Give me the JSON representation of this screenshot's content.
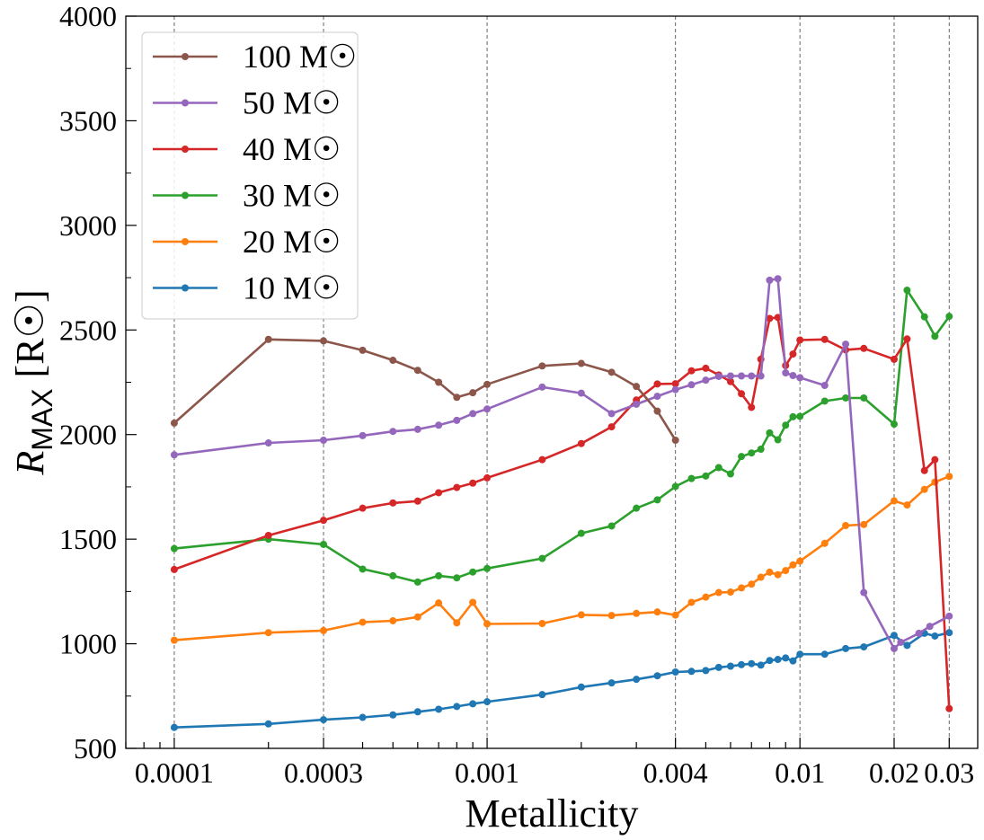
{
  "chart_data": {
    "type": "line",
    "xscale": "log",
    "xlabel": "Metallicity",
    "ylabel": "R_MAX [R☉]",
    "ylabel_parts": {
      "symbol": "R",
      "subscript": "MAX",
      "unit": "[R☉]"
    },
    "xlim": [
      7e-05,
      0.037
    ],
    "ylim": [
      500,
      4000
    ],
    "x_ticks": [
      {
        "value": 0.0001,
        "label": "0.0001"
      },
      {
        "value": 0.0003,
        "label": "0.0003"
      },
      {
        "value": 0.001,
        "label": "0.001"
      },
      {
        "value": 0.004,
        "label": "0.004"
      },
      {
        "value": 0.01,
        "label": "0.01"
      },
      {
        "value": 0.02,
        "label": "0.02"
      },
      {
        "value": 0.03,
        "label": "0.03"
      }
    ],
    "y_ticks": [
      500,
      1000,
      1500,
      2000,
      2500,
      3000,
      3500,
      4000
    ],
    "vertical_guides": [
      0.0001,
      0.0003,
      0.001,
      0.004,
      0.01,
      0.02,
      0.03
    ],
    "legend_position": "top-left",
    "series": [
      {
        "name": "100 M☉",
        "color": "#8c564b",
        "x": [
          0.0001,
          0.0002,
          0.0003,
          0.0004,
          0.0005,
          0.0006,
          0.0007,
          0.0008,
          0.0009,
          0.001,
          0.0015,
          0.002,
          0.0025,
          0.003,
          0.0035,
          0.004
        ],
        "y": [
          2055,
          2455,
          2448,
          2403,
          2355,
          2307,
          2250,
          2178,
          2200,
          2240,
          2328,
          2340,
          2298,
          2230,
          2112,
          1973
        ]
      },
      {
        "name": "50 M☉",
        "color": "#9467bd",
        "x": [
          0.0001,
          0.0002,
          0.0003,
          0.0004,
          0.0005,
          0.0006,
          0.0007,
          0.0008,
          0.0009,
          0.001,
          0.0015,
          0.002,
          0.0025,
          0.003,
          0.0035,
          0.004,
          0.0045,
          0.005,
          0.0055,
          0.006,
          0.0065,
          0.007,
          0.0075,
          0.008,
          0.0085,
          0.009,
          0.0095,
          0.01,
          0.012,
          0.014,
          0.016,
          0.02,
          0.021,
          0.024,
          0.026,
          0.03
        ],
        "y": [
          1903,
          1960,
          1973,
          1995,
          2015,
          2025,
          2045,
          2068,
          2100,
          2122,
          2227,
          2198,
          2100,
          2145,
          2183,
          2215,
          2238,
          2260,
          2278,
          2280,
          2280,
          2280,
          2280,
          2738,
          2745,
          2295,
          2282,
          2272,
          2235,
          2432,
          1245,
          977,
          1007,
          1050,
          1083,
          1132
        ]
      },
      {
        "name": "40 M☉",
        "color": "#d62728",
        "x": [
          0.0001,
          0.0002,
          0.0003,
          0.0004,
          0.0005,
          0.0006,
          0.0007,
          0.0008,
          0.0009,
          0.001,
          0.0015,
          0.002,
          0.0025,
          0.003,
          0.0035,
          0.004,
          0.0045,
          0.005,
          0.0055,
          0.006,
          0.0065,
          0.007,
          0.0075,
          0.008,
          0.0085,
          0.009,
          0.0095,
          0.01,
          0.012,
          0.014,
          0.016,
          0.02,
          0.022,
          0.025,
          0.027,
          0.03
        ],
        "y": [
          1355,
          1518,
          1590,
          1648,
          1673,
          1682,
          1722,
          1747,
          1768,
          1793,
          1880,
          1957,
          2037,
          2165,
          2242,
          2243,
          2305,
          2317,
          2285,
          2253,
          2195,
          2130,
          2360,
          2555,
          2560,
          2330,
          2385,
          2452,
          2455,
          2405,
          2412,
          2360,
          2457,
          1828,
          1880,
          690
        ]
      },
      {
        "name": "30 M☉",
        "color": "#2ca02c",
        "x": [
          0.0001,
          0.0002,
          0.0003,
          0.0004,
          0.0005,
          0.0006,
          0.0007,
          0.0008,
          0.0009,
          0.001,
          0.0015,
          0.002,
          0.0025,
          0.003,
          0.0035,
          0.004,
          0.0045,
          0.005,
          0.0055,
          0.006,
          0.0065,
          0.007,
          0.0075,
          0.008,
          0.0085,
          0.009,
          0.0095,
          0.01,
          0.012,
          0.014,
          0.016,
          0.02,
          0.022,
          0.025,
          0.027,
          0.03
        ],
        "y": [
          1455,
          1500,
          1475,
          1357,
          1325,
          1295,
          1325,
          1315,
          1343,
          1360,
          1408,
          1528,
          1563,
          1648,
          1688,
          1752,
          1790,
          1802,
          1842,
          1812,
          1895,
          1912,
          1930,
          2008,
          1975,
          2045,
          2085,
          2087,
          2160,
          2175,
          2175,
          2050,
          2690,
          2563,
          2470,
          2565
        ]
      },
      {
        "name": "20 M☉",
        "color": "#ff7f0e",
        "x": [
          0.0001,
          0.0002,
          0.0003,
          0.0004,
          0.0005,
          0.0006,
          0.0007,
          0.0008,
          0.0009,
          0.001,
          0.0015,
          0.002,
          0.0025,
          0.003,
          0.0035,
          0.004,
          0.0045,
          0.005,
          0.0055,
          0.006,
          0.0065,
          0.007,
          0.0075,
          0.008,
          0.0085,
          0.009,
          0.0095,
          0.01,
          0.012,
          0.014,
          0.016,
          0.02,
          0.022,
          0.025,
          0.027,
          0.03
        ],
        "y": [
          1017,
          1053,
          1063,
          1103,
          1110,
          1128,
          1195,
          1100,
          1198,
          1095,
          1097,
          1138,
          1135,
          1145,
          1152,
          1137,
          1198,
          1223,
          1245,
          1247,
          1267,
          1285,
          1318,
          1342,
          1330,
          1350,
          1377,
          1395,
          1480,
          1565,
          1570,
          1683,
          1663,
          1738,
          1773,
          1800
        ]
      },
      {
        "name": "10 M☉",
        "color": "#1f77b4",
        "x": [
          0.0001,
          0.0002,
          0.0003,
          0.0004,
          0.0005,
          0.0006,
          0.0007,
          0.0008,
          0.0009,
          0.001,
          0.0015,
          0.002,
          0.0025,
          0.003,
          0.0035,
          0.004,
          0.0045,
          0.005,
          0.0055,
          0.006,
          0.0065,
          0.007,
          0.0075,
          0.008,
          0.0085,
          0.009,
          0.0095,
          0.01,
          0.012,
          0.014,
          0.016,
          0.02,
          0.022,
          0.025,
          0.027,
          0.03
        ],
        "y": [
          600,
          617,
          637,
          648,
          660,
          675,
          687,
          700,
          713,
          723,
          757,
          793,
          813,
          830,
          847,
          865,
          868,
          872,
          887,
          893,
          900,
          905,
          898,
          920,
          925,
          932,
          918,
          950,
          950,
          977,
          985,
          1040,
          992,
          1050,
          1037,
          1053
        ]
      }
    ]
  }
}
